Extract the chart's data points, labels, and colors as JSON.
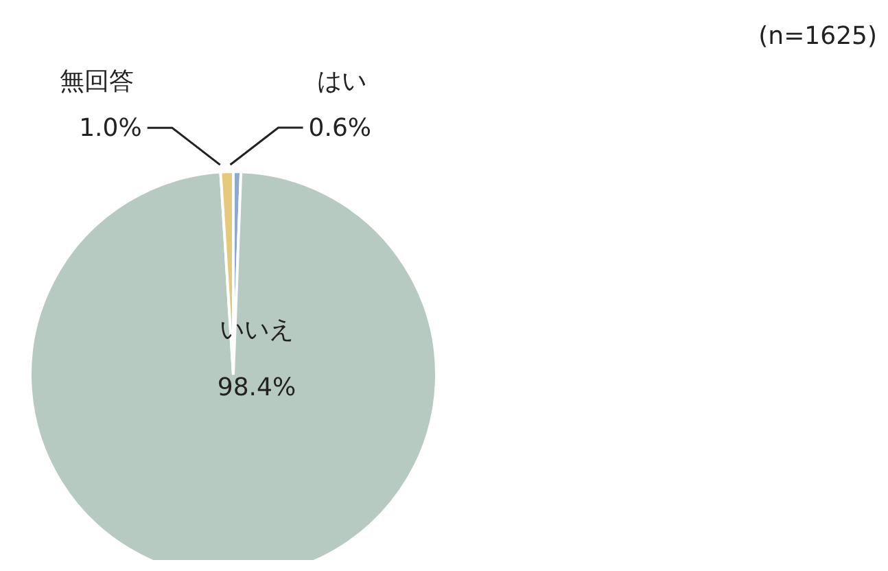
{
  "chart_data": {
    "type": "pie",
    "categories": [
      "はい",
      "いいえ",
      "無回答"
    ],
    "values": [
      0.6,
      98.4,
      1.0
    ],
    "value_labels": [
      "0.6%",
      "98.4%",
      "1.0%"
    ],
    "colors": [
      "#8eaacb",
      "#b7cac1",
      "#e5ca7e"
    ],
    "legend": false,
    "annotations": [
      "(n=1625)"
    ]
  }
}
